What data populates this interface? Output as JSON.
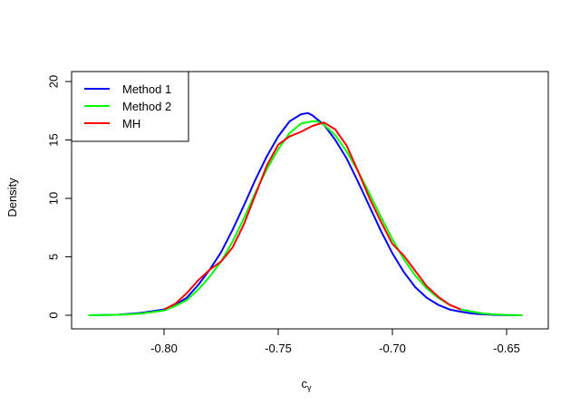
{
  "chart_data": {
    "type": "line",
    "title": "",
    "xlabel": "c",
    "xlabel_subscript": "γ",
    "ylabel": "Density",
    "xlim": [
      -0.834,
      -0.642
    ],
    "ylim": [
      0,
      20
    ],
    "x_ticks": [
      -0.8,
      -0.75,
      -0.7,
      -0.65
    ],
    "x_tick_labels": [
      "-0.80",
      "-0.75",
      "-0.70",
      "-0.65"
    ],
    "y_ticks": [
      0,
      5,
      10,
      15,
      20
    ],
    "y_tick_labels": [
      "0",
      "5",
      "10",
      "15",
      "20"
    ],
    "grid": false,
    "legend_position": "top-left",
    "series": [
      {
        "name": "Method 1",
        "color": "#0000FF",
        "x": [
          -0.833,
          -0.82,
          -0.81,
          -0.8,
          -0.795,
          -0.79,
          -0.785,
          -0.78,
          -0.775,
          -0.77,
          -0.765,
          -0.76,
          -0.755,
          -0.75,
          -0.745,
          -0.74,
          -0.737,
          -0.735,
          -0.73,
          -0.725,
          -0.72,
          -0.715,
          -0.71,
          -0.705,
          -0.7,
          -0.695,
          -0.69,
          -0.685,
          -0.68,
          -0.675,
          -0.67,
          -0.665,
          -0.66,
          -0.655,
          -0.65,
          -0.643
        ],
        "y": [
          0,
          0.05,
          0.2,
          0.5,
          0.9,
          1.5,
          2.6,
          3.9,
          5.4,
          7.3,
          9.4,
          11.6,
          13.6,
          15.3,
          16.6,
          17.2,
          17.3,
          17.1,
          16.3,
          15.0,
          13.4,
          11.4,
          9.3,
          7.2,
          5.3,
          3.7,
          2.4,
          1.5,
          0.9,
          0.5,
          0.3,
          0.15,
          0.08,
          0.03,
          0.01,
          0
        ]
      },
      {
        "name": "Method 2",
        "color": "#00FF00",
        "x": [
          -0.833,
          -0.82,
          -0.81,
          -0.8,
          -0.795,
          -0.79,
          -0.785,
          -0.78,
          -0.775,
          -0.77,
          -0.765,
          -0.76,
          -0.755,
          -0.75,
          -0.745,
          -0.74,
          -0.735,
          -0.733,
          -0.73,
          -0.725,
          -0.72,
          -0.715,
          -0.71,
          -0.705,
          -0.7,
          -0.695,
          -0.69,
          -0.685,
          -0.68,
          -0.675,
          -0.67,
          -0.665,
          -0.66,
          -0.655,
          -0.65,
          -0.643
        ],
        "y": [
          0,
          0.04,
          0.15,
          0.4,
          0.8,
          1.3,
          2.2,
          3.3,
          4.6,
          6.3,
          8.3,
          10.5,
          12.5,
          14.2,
          15.6,
          16.4,
          16.6,
          16.6,
          16.3,
          15.4,
          14.0,
          12.3,
          10.4,
          8.4,
          6.5,
          4.8,
          3.4,
          2.3,
          1.5,
          0.9,
          0.5,
          0.3,
          0.15,
          0.07,
          0.03,
          0
        ]
      },
      {
        "name": "MH",
        "color": "#FF0000",
        "x": [
          -0.8,
          -0.795,
          -0.79,
          -0.785,
          -0.78,
          -0.775,
          -0.77,
          -0.765,
          -0.76,
          -0.755,
          -0.75,
          -0.745,
          -0.74,
          -0.735,
          -0.73,
          -0.725,
          -0.72,
          -0.715,
          -0.71,
          -0.705,
          -0.7,
          -0.695,
          -0.69,
          -0.685,
          -0.68,
          -0.675,
          -0.67
        ],
        "y": [
          0.5,
          1.0,
          1.9,
          3.0,
          3.9,
          4.6,
          5.8,
          7.8,
          10.3,
          12.8,
          14.6,
          15.3,
          15.7,
          16.2,
          16.5,
          15.9,
          14.5,
          12.3,
          10.0,
          8.0,
          6.1,
          5.1,
          3.8,
          2.5,
          1.6,
          0.9,
          0.5
        ]
      }
    ]
  }
}
